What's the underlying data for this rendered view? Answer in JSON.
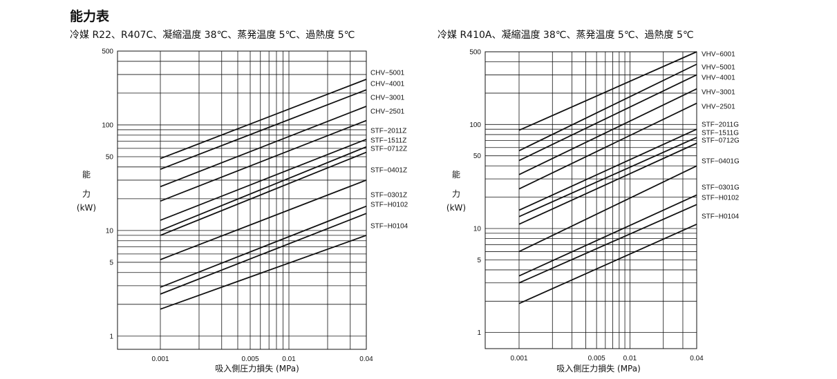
{
  "page_title": "能力表",
  "chart_data": [
    {
      "type": "line",
      "title": "冷媒 R22、R407C、凝縮温度 38℃、蒸発温度 5℃、過熱度 5℃",
      "xlabel": "吸入側圧力損失 (MPa)",
      "ylabel": [
        "能",
        "力",
        "(kW)"
      ],
      "xscale": "log",
      "yscale": "log",
      "xlim": [
        0.001,
        0.04
      ],
      "ylim": [
        0.75,
        500
      ],
      "xticks": [
        "0.001",
        "0.005",
        "0.01",
        "0.04"
      ],
      "yticks": [
        "1",
        "5",
        "10",
        "50",
        "100",
        "500"
      ],
      "grid": true,
      "series": [
        {
          "name": "CHV−5001",
          "x": [
            0.001,
            0.04
          ],
          "y": [
            48,
            270
          ]
        },
        {
          "name": "CHV−4001",
          "x": [
            0.001,
            0.04
          ],
          "y": [
            38,
            215
          ]
        },
        {
          "name": "CHV−3001",
          "x": [
            0.001,
            0.04
          ],
          "y": [
            26,
            150
          ]
        },
        {
          "name": "CHV−2501",
          "x": [
            0.001,
            0.04
          ],
          "y": [
            19,
            110
          ]
        },
        {
          "name": "STF−2011Z",
          "x": [
            0.001,
            0.04
          ],
          "y": [
            12.5,
            73
          ]
        },
        {
          "name": "STF−1511Z",
          "x": [
            0.001,
            0.04
          ],
          "y": [
            10,
            62
          ]
        },
        {
          "name": "STF−0712Z",
          "x": [
            0.001,
            0.04
          ],
          "y": [
            9,
            55
          ]
        },
        {
          "name": "STF−0401Z",
          "x": [
            0.001,
            0.04
          ],
          "y": [
            5.3,
            30
          ]
        },
        {
          "name": "STF−0301Z",
          "x": [
            0.001,
            0.04
          ],
          "y": [
            2.9,
            17
          ]
        },
        {
          "name": "STF−H0102",
          "x": [
            0.001,
            0.04
          ],
          "y": [
            2.5,
            14.5
          ]
        },
        {
          "name": "STF−H0104",
          "x": [
            0.001,
            0.04
          ],
          "y": [
            1.8,
            9
          ]
        }
      ]
    },
    {
      "type": "line",
      "title": "冷媒 R410A、凝縮温度 38℃、蒸発温度 5℃、過熱度 5℃",
      "xlabel": "吸入側圧力損失 (MPa)",
      "ylabel": [
        "能",
        "力",
        "(kW)"
      ],
      "xscale": "log",
      "yscale": "log",
      "xlim": [
        0.001,
        0.04
      ],
      "ylim": [
        0.7,
        500
      ],
      "xticks": [
        "0.001",
        "0.005",
        "0.01",
        "0.04"
      ],
      "yticks": [
        "1",
        "5",
        "10",
        "50",
        "100",
        "500"
      ],
      "grid": true,
      "series": [
        {
          "name": "VHV−6001",
          "x": [
            0.001,
            0.04
          ],
          "y": [
            88,
            500
          ]
        },
        {
          "name": "VHV−5001",
          "x": [
            0.001,
            0.04
          ],
          "y": [
            56,
            380
          ]
        },
        {
          "name": "VHV−4001",
          "x": [
            0.001,
            0.04
          ],
          "y": [
            45,
            300
          ]
        },
        {
          "name": "VHV−3001",
          "x": [
            0.001,
            0.04
          ],
          "y": [
            33,
            220
          ]
        },
        {
          "name": "VHV−2501",
          "x": [
            0.001,
            0.04
          ],
          "y": [
            24,
            160
          ]
        },
        {
          "name": "STF−2011G",
          "x": [
            0.001,
            0.04
          ],
          "y": [
            15,
            90
          ]
        },
        {
          "name": "STF−1511G",
          "x": [
            0.001,
            0.04
          ],
          "y": [
            13,
            75
          ]
        },
        {
          "name": "STF−0712G",
          "x": [
            0.001,
            0.04
          ],
          "y": [
            11,
            66
          ]
        },
        {
          "name": "STF−0401G",
          "x": [
            0.001,
            0.04
          ],
          "y": [
            6,
            40
          ]
        },
        {
          "name": "STF−0301G",
          "x": [
            0.001,
            0.04
          ],
          "y": [
            3.5,
            21
          ]
        },
        {
          "name": "STF−H0102",
          "x": [
            0.001,
            0.04
          ],
          "y": [
            3,
            17
          ]
        },
        {
          "name": "STF−H0104",
          "x": [
            0.001,
            0.04
          ],
          "y": [
            1.9,
            11
          ]
        }
      ]
    }
  ]
}
